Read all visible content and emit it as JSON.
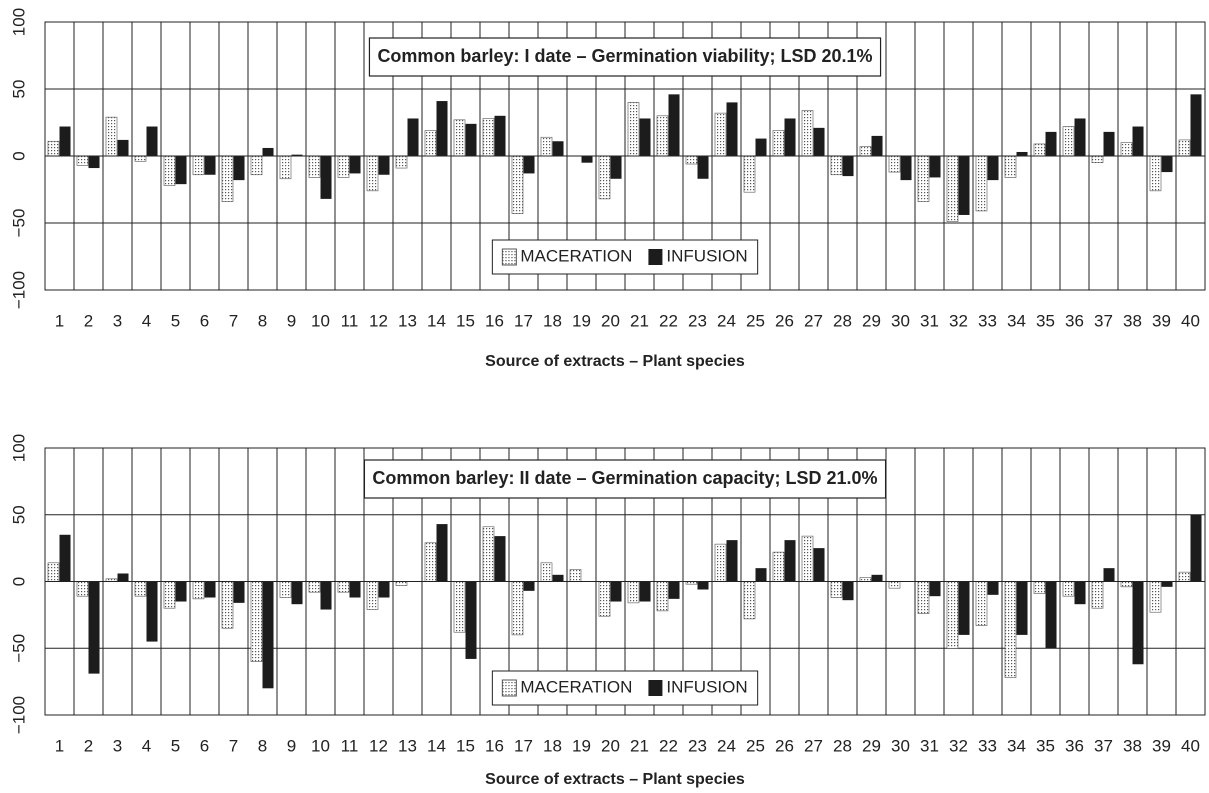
{
  "chart_data": [
    {
      "type": "bar",
      "title": "Common barley: I date – Germination viability; LSD 20.1%",
      "x_label": "Source of extracts – Plant species",
      "categories": [
        "1",
        "2",
        "3",
        "4",
        "5",
        "6",
        "7",
        "8",
        "9",
        "10",
        "11",
        "12",
        "13",
        "14",
        "15",
        "16",
        "17",
        "18",
        "19",
        "20",
        "21",
        "22",
        "23",
        "24",
        "25",
        "26",
        "27",
        "28",
        "29",
        "30",
        "31",
        "32",
        "33",
        "34",
        "35",
        "36",
        "37",
        "38",
        "39",
        "40"
      ],
      "series": [
        {
          "name": "MACERATION",
          "color": "#555555",
          "pattern": "dots",
          "values": [
            11,
            -7,
            29,
            -4,
            -22,
            -14,
            -34,
            -14,
            -17,
            -16,
            -16,
            -26,
            -9,
            19,
            27,
            28,
            -43,
            14,
            0,
            -32,
            40,
            30,
            -6,
            32,
            -27,
            19,
            34,
            -14,
            7,
            -12,
            -34,
            -49,
            -41,
            -16,
            9,
            22,
            -5,
            10,
            -26,
            12
          ]
        },
        {
          "name": "INFUSION",
          "color": "#1c1c1c",
          "values": [
            22,
            -9,
            12,
            22,
            -21,
            -14,
            -18,
            6,
            1,
            -32,
            -13,
            -14,
            28,
            41,
            24,
            30,
            -13,
            11,
            -5,
            -17,
            28,
            46,
            -17,
            40,
            13,
            28,
            21,
            -15,
            15,
            -18,
            -16,
            -44,
            -18,
            3,
            18,
            28,
            18,
            22,
            -12,
            46
          ]
        }
      ],
      "ylim": [
        -100,
        100
      ],
      "yticks": [
        {
          "value": -100,
          "label": "−100"
        },
        {
          "value": -50,
          "label": "−50"
        },
        0,
        50,
        100
      ],
      "grid": true,
      "legend_position": "lower center"
    },
    {
      "type": "bar",
      "title": "Common barley: II date – Germination capacity; LSD 21.0%",
      "x_label": "Source of extracts – Plant species",
      "categories": [
        "1",
        "2",
        "3",
        "4",
        "5",
        "6",
        "7",
        "8",
        "9",
        "10",
        "11",
        "12",
        "13",
        "14",
        "15",
        "16",
        "17",
        "18",
        "19",
        "20",
        "21",
        "22",
        "23",
        "24",
        "25",
        "26",
        "27",
        "28",
        "29",
        "30",
        "31",
        "32",
        "33",
        "34",
        "35",
        "36",
        "37",
        "38",
        "39",
        "40"
      ],
      "series": [
        {
          "name": "MACERATION",
          "color": "#555555",
          "pattern": "dots",
          "values": [
            14,
            -11,
            2,
            -11,
            -20,
            -13,
            -35,
            -60,
            -12,
            -8,
            -8,
            -21,
            -3,
            29,
            -38,
            41,
            -40,
            14,
            9,
            -26,
            -16,
            -22,
            -2,
            28,
            -28,
            22,
            34,
            -12,
            3,
            -5,
            -24,
            -50,
            -33,
            -72,
            -9,
            -11,
            -20,
            -4,
            -23,
            7
          ]
        },
        {
          "name": "INFUSION",
          "color": "#1c1c1c",
          "values": [
            35,
            -69,
            6,
            -45,
            -15,
            -12,
            -16,
            -80,
            -17,
            -21,
            -12,
            -12,
            0,
            43,
            -58,
            34,
            -7,
            5,
            0,
            -15,
            -15,
            -13,
            -6,
            31,
            10,
            31,
            25,
            -14,
            5,
            0,
            -11,
            -40,
            -10,
            -40,
            -50,
            -17,
            10,
            -62,
            -4,
            50
          ]
        }
      ],
      "ylim": [
        -100,
        100
      ],
      "yticks": [
        {
          "value": -100,
          "label": "−100"
        },
        {
          "value": -50,
          "label": "−50"
        },
        0,
        50,
        100
      ],
      "grid": true,
      "legend_position": "lower center"
    }
  ]
}
